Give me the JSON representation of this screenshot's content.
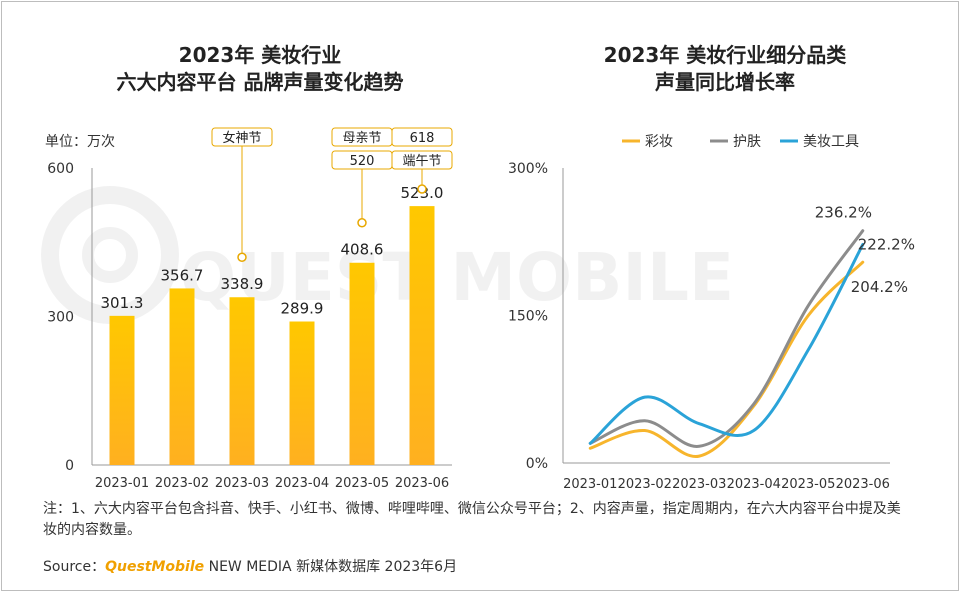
{
  "titles": {
    "left_line1": "2023年 美妆行业",
    "left_line2": "六大内容平台 品牌声量变化趋势",
    "right_line1": "2023年 美妆行业细分品类",
    "right_line2": "声量同比增长率"
  },
  "colors": {
    "bar_top": "#ffc800",
    "bar_bottom": "#ffb020",
    "callout_border": "#e8a800",
    "series": [
      "#f7b52c",
      "#8c8c8c",
      "#2aa3d8"
    ]
  },
  "watermark": "QUEST MOBILE",
  "note": "注：1、六大内容平台包含抖音、快手、小红书、微博、哔哩哔哩、微信公众号平台；2、内容声量，指定周期内，在六大内容平台中提及美妆的内容数量。",
  "source": {
    "prefix": "Source：",
    "brand": "QuestMobile",
    "rest": "NEW MEDIA 新媒体数据库 2023年6月"
  },
  "chart_data": [
    {
      "type": "bar",
      "title": "2023年 美妆行业 六大内容平台 品牌声量变化趋势",
      "unit_label": "单位：万次",
      "categories": [
        "2023-01",
        "2023-02",
        "2023-03",
        "2023-04",
        "2023-05",
        "2023-06"
      ],
      "values": [
        301.3,
        356.7,
        338.9,
        289.9,
        408.6,
        523.0
      ],
      "value_labels": [
        "301.3",
        "356.7",
        "338.9",
        "289.9",
        "408.6",
        "523.0"
      ],
      "ylim": [
        0,
        600
      ],
      "yticks": [
        "0",
        "300",
        "600"
      ],
      "annotations": [
        {
          "category": "2023-03",
          "labels": [
            "女神节"
          ]
        },
        {
          "category": "2023-05",
          "labels": [
            "母亲节",
            "520"
          ]
        },
        {
          "category": "2023-06",
          "labels": [
            "618",
            "端午节"
          ]
        }
      ],
      "grid": false
    },
    {
      "type": "line",
      "title": "2023年 美妆行业细分品类 声量同比增长率",
      "categories": [
        "2023-01",
        "2023-02",
        "2023-03",
        "2023-04",
        "2023-05",
        "2023-06"
      ],
      "series": [
        {
          "name": "彩妆",
          "values": [
            15,
            33,
            7,
            58,
            150,
            204.2
          ]
        },
        {
          "name": "护肤",
          "values": [
            20,
            43,
            17,
            60,
            160,
            236.2
          ]
        },
        {
          "name": "美妆工具",
          "values": [
            20,
            67,
            40,
            33,
            115,
            222.2
          ]
        }
      ],
      "end_labels": [
        "204.2%",
        "236.2%",
        "222.2%"
      ],
      "ylim": [
        0,
        300
      ],
      "yticks": [
        "0%",
        "150%",
        "300%"
      ],
      "legend": "top",
      "grid": false
    }
  ]
}
